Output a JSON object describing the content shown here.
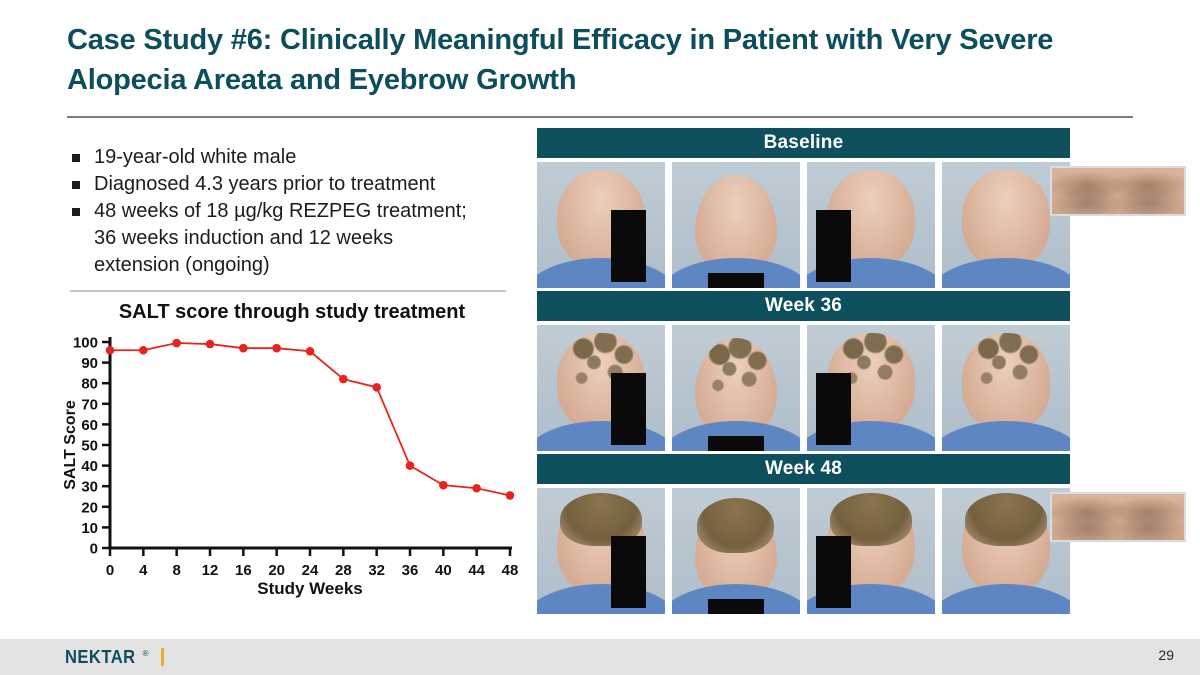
{
  "slide": {
    "title": "Case Study #6: Clinically Meaningful Efficacy in Patient with Very Severe Alopecia Areata and Eyebrow Growth"
  },
  "colors": {
    "title_teal": "#0d4e5c",
    "header_bar_teal": "#0e4f5e",
    "chart_red": "#e8231d",
    "footer_bg": "#e3e3e4",
    "accent_amber": "#edaa3a"
  },
  "bullets": [
    "19-year-old white male",
    "Diagnosed 4.3 years prior to treatment",
    "48 weeks of 18 µg/kg REZPEG treatment; 36 weeks induction and 12 weeks extension (ongoing)"
  ],
  "chart_data": {
    "type": "line",
    "title": "SALT score through study treatment",
    "xlabel": "Study Weeks",
    "ylabel": "SALT Score",
    "x": [
      0,
      4,
      8,
      12,
      16,
      20,
      24,
      28,
      32,
      36,
      40,
      44,
      48
    ],
    "values": [
      96,
      96,
      99.5,
      99,
      97,
      97,
      95.5,
      82,
      78,
      40,
      30.5,
      29,
      25.5
    ],
    "xlim": [
      0,
      48
    ],
    "ylim": [
      0,
      100
    ],
    "x_ticks": [
      0,
      4,
      8,
      12,
      16,
      20,
      24,
      28,
      32,
      36,
      40,
      44,
      48
    ],
    "y_ticks": [
      0,
      10,
      20,
      30,
      40,
      50,
      60,
      70,
      80,
      90,
      100
    ],
    "line_color": "#e8231d",
    "marker": "circle",
    "grid": false,
    "legend": "none"
  },
  "photo_panel": {
    "rows": [
      {
        "label": "Baseline",
        "stage": "bald",
        "views": [
          "left-profile",
          "top-of-head",
          "right-profile",
          "back-of-head"
        ],
        "eyebrow_inset": true
      },
      {
        "label": "Week 36",
        "stage": "patchy",
        "views": [
          "left-profile",
          "top-of-head",
          "right-profile",
          "back-of-head"
        ],
        "eyebrow_inset": false
      },
      {
        "label": "Week 48",
        "stage": "regrown",
        "views": [
          "left-profile",
          "top-of-head",
          "right-profile",
          "back-of-head"
        ],
        "eyebrow_inset": true
      }
    ]
  },
  "footer": {
    "logo_text": "NEKTAR",
    "trademark": "®",
    "page_number": "29"
  }
}
